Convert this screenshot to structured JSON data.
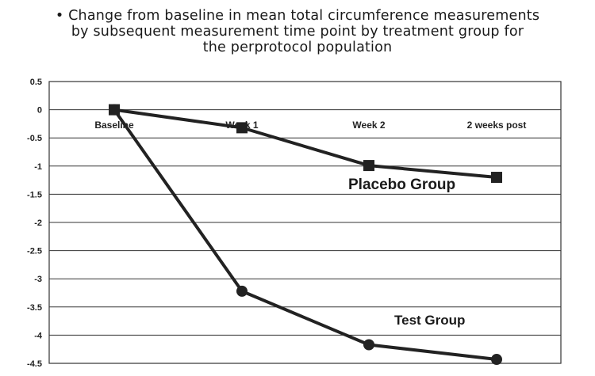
{
  "title_lines": [
    "• Change from baseline in mean total circumference measurements",
    "by subsequent measurement time point by treatment group for",
    "the perprotocol population"
  ],
  "chart_data": {
    "type": "line",
    "categories": [
      "Baseline",
      "Week 1",
      "Week 2",
      "2 weeks post"
    ],
    "series": [
      {
        "name": "Placebo Group",
        "marker": "square",
        "values": [
          0,
          -0.32,
          -0.99,
          -1.2
        ]
      },
      {
        "name": "Test Group",
        "marker": "circle",
        "values": [
          0,
          -3.22,
          -4.17,
          -4.43
        ]
      }
    ],
    "ylim": [
      -4.5,
      0.5
    ],
    "yticks": [
      "0.5",
      "0",
      "-0.5",
      "-1",
      "-1.5",
      "-2",
      "-2.5",
      "-3",
      "-3.5",
      "-4",
      "-4.5"
    ],
    "grid": true,
    "annotations": [
      {
        "text": "Placebo Group",
        "series": "Placebo Group"
      },
      {
        "text": "Test Group",
        "series": "Test Group"
      }
    ],
    "colors": {
      "line": "#222222",
      "grid": "#333333",
      "background": "#ffffff"
    }
  }
}
